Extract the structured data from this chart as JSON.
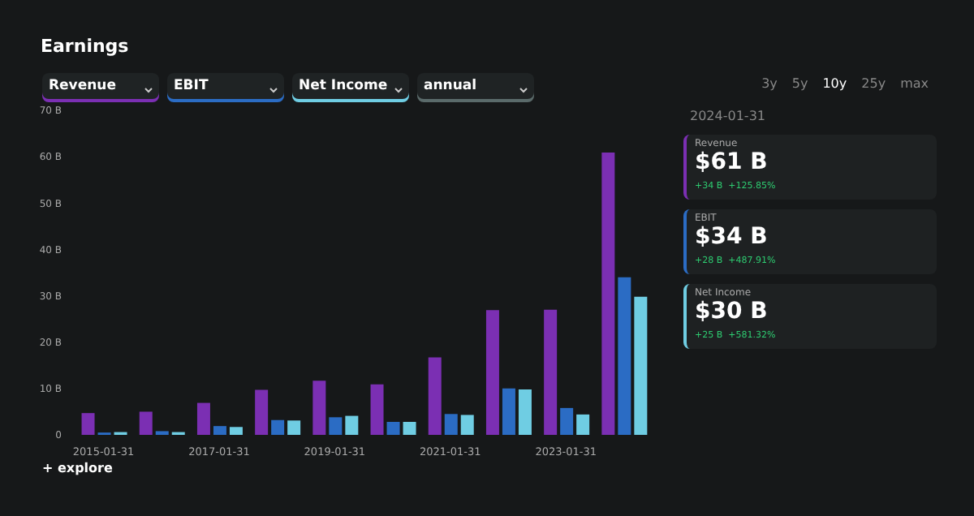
{
  "chart_data": {
    "type": "bar",
    "title": "Earnings",
    "categories": [
      "2015-01-31",
      null,
      "2017-01-31",
      null,
      "2019-01-31",
      null,
      "2021-01-31",
      null,
      "2023-01-31",
      null
    ],
    "series": [
      {
        "name": "Revenue",
        "color": "#7b2fb3",
        "values": [
          4.7,
          5.0,
          6.9,
          9.7,
          11.7,
          10.9,
          16.7,
          26.9,
          27.0,
          60.9
        ]
      },
      {
        "name": "EBIT",
        "color": "#2b6cc4",
        "values": [
          0.5,
          0.8,
          1.9,
          3.2,
          3.8,
          2.8,
          4.5,
          10.0,
          5.8,
          34.0
        ]
      },
      {
        "name": "Net Income",
        "color": "#6fcde3",
        "values": [
          0.6,
          0.6,
          1.7,
          3.1,
          4.1,
          2.8,
          4.3,
          9.8,
          4.4,
          29.8
        ]
      }
    ],
    "ylim": [
      0,
      70
    ],
    "yticks": [
      0,
      {
        "value": 10,
        "label": "10 B"
      },
      {
        "value": 20,
        "label": "20 B"
      },
      {
        "value": 30,
        "label": "30 B"
      },
      {
        "value": 40,
        "label": "40 B"
      },
      {
        "value": 50,
        "label": "50 B"
      },
      {
        "value": 60,
        "label": "60 B"
      },
      {
        "value": 70,
        "label": "70 B"
      }
    ],
    "grid": false,
    "legend": "right",
    "annotations": [
      "annual",
      "3y",
      "5y",
      "10y",
      "25y",
      "max",
      "+ explore",
      "2024-01-31",
      "$61 B",
      "+34 B",
      "+125.85%",
      "$34 B",
      "+28 B",
      "+487.91%",
      "$30 B",
      "+25 B",
      "+581.32%"
    ]
  }
}
